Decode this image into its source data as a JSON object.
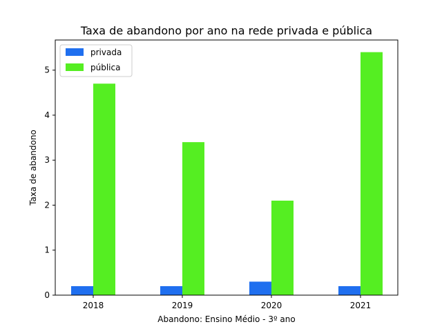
{
  "chart_data": {
    "type": "bar",
    "title": "Taxa de abandono por ano na rede privada e pública",
    "xlabel": "Abandono: Ensino Médio - 3º ano",
    "ylabel": "Taxa de abandono",
    "categories": [
      "2018",
      "2019",
      "2020",
      "2021"
    ],
    "series": [
      {
        "name": "privada",
        "values": [
          0.2,
          0.2,
          0.3,
          0.2
        ],
        "color": "#1f6fef"
      },
      {
        "name": "pública",
        "values": [
          4.7,
          3.4,
          2.1,
          5.4
        ],
        "color": "#55ee22"
      }
    ],
    "ylim": [
      0,
      5.67
    ],
    "yticks": [
      0,
      1,
      2,
      3,
      4,
      5
    ],
    "grid": false,
    "legend_position": "top-left"
  }
}
